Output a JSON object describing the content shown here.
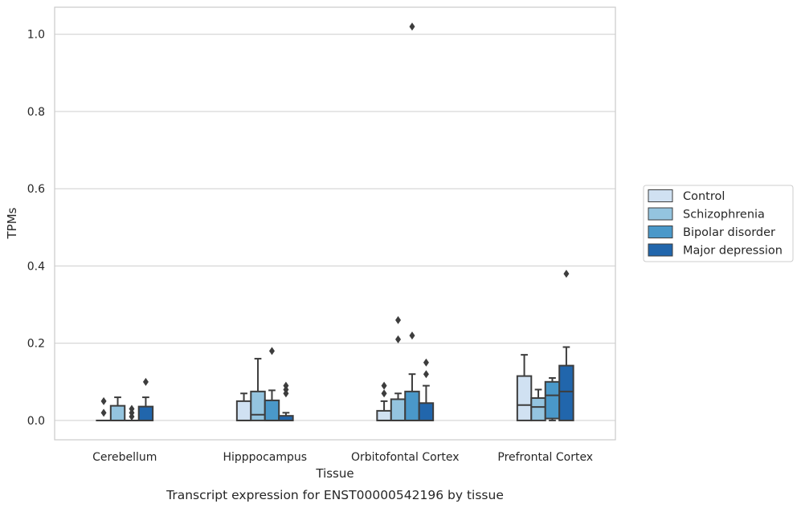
{
  "chart_data": {
    "type": "box",
    "caption": "Transcript expression for ENST00000542196 by tissue",
    "xlabel": "Tissue",
    "ylabel": "TPMs",
    "ylim": [
      -0.05,
      1.07
    ],
    "yticks": [
      0.0,
      0.2,
      0.4,
      0.6,
      0.8,
      1.0
    ],
    "ytick_labels": [
      "0.0",
      "0.2",
      "0.4",
      "0.6",
      "0.8",
      "1.0"
    ],
    "grid": "horizontal",
    "legend_position": "right",
    "categories": [
      "Cerebellum",
      "Hipppocampus",
      "Orbitofontal Cortex",
      "Prefrontal Cortex"
    ],
    "series": [
      {
        "name": "Control",
        "color": "#d0e1f2",
        "boxes": [
          {
            "q1": 0.0,
            "median": 0.0,
            "q3": 0.0,
            "whisker_low": 0.0,
            "whisker_high": 0.0,
            "outliers": [
              0.05,
              0.02
            ]
          },
          {
            "q1": 0.0,
            "median": 0.0,
            "q3": 0.05,
            "whisker_low": 0.0,
            "whisker_high": 0.07,
            "outliers": []
          },
          {
            "q1": 0.0,
            "median": 0.0,
            "q3": 0.025,
            "whisker_low": 0.0,
            "whisker_high": 0.05,
            "outliers": [
              0.09,
              0.07
            ]
          },
          {
            "q1": 0.0,
            "median": 0.04,
            "q3": 0.115,
            "whisker_low": 0.0,
            "whisker_high": 0.17,
            "outliers": []
          }
        ]
      },
      {
        "name": "Schizophrenia",
        "color": "#94c4df",
        "boxes": [
          {
            "q1": 0.0,
            "median": 0.0,
            "q3": 0.038,
            "whisker_low": 0.0,
            "whisker_high": 0.06,
            "outliers": []
          },
          {
            "q1": 0.0,
            "median": 0.015,
            "q3": 0.075,
            "whisker_low": 0.0,
            "whisker_high": 0.16,
            "outliers": []
          },
          {
            "q1": 0.0,
            "median": 0.0,
            "q3": 0.055,
            "whisker_low": 0.0,
            "whisker_high": 0.07,
            "outliers": [
              0.26,
              0.21
            ]
          },
          {
            "q1": 0.0,
            "median": 0.035,
            "q3": 0.058,
            "whisker_low": 0.0,
            "whisker_high": 0.08,
            "outliers": []
          }
        ]
      },
      {
        "name": "Bipolar disorder",
        "color": "#4a98c9",
        "boxes": [
          {
            "q1": 0.0,
            "median": 0.0,
            "q3": 0.0,
            "whisker_low": 0.0,
            "whisker_high": 0.0,
            "outliers": [
              0.03,
              0.02,
              0.01
            ]
          },
          {
            "q1": 0.0,
            "median": 0.0,
            "q3": 0.052,
            "whisker_low": 0.0,
            "whisker_high": 0.078,
            "outliers": [
              0.18
            ]
          },
          {
            "q1": 0.0,
            "median": 0.0,
            "q3": 0.075,
            "whisker_low": 0.0,
            "whisker_high": 0.12,
            "outliers": [
              1.02,
              0.22
            ]
          },
          {
            "q1": 0.005,
            "median": 0.065,
            "q3": 0.1,
            "whisker_low": 0.0,
            "whisker_high": 0.11,
            "outliers": []
          }
        ]
      },
      {
        "name": "Major depression",
        "color": "#2166ac",
        "boxes": [
          {
            "q1": 0.0,
            "median": 0.0,
            "q3": 0.036,
            "whisker_low": 0.0,
            "whisker_high": 0.06,
            "outliers": [
              0.1
            ]
          },
          {
            "q1": 0.0,
            "median": 0.0,
            "q3": 0.012,
            "whisker_low": 0.0,
            "whisker_high": 0.02,
            "outliers": [
              0.09,
              0.08,
              0.07
            ]
          },
          {
            "q1": 0.0,
            "median": 0.0,
            "q3": 0.045,
            "whisker_low": 0.0,
            "whisker_high": 0.09,
            "outliers": [
              0.15,
              0.12
            ]
          },
          {
            "q1": 0.0,
            "median": 0.075,
            "q3": 0.142,
            "whisker_low": 0.0,
            "whisker_high": 0.19,
            "outliers": [
              0.38
            ]
          }
        ]
      }
    ]
  }
}
